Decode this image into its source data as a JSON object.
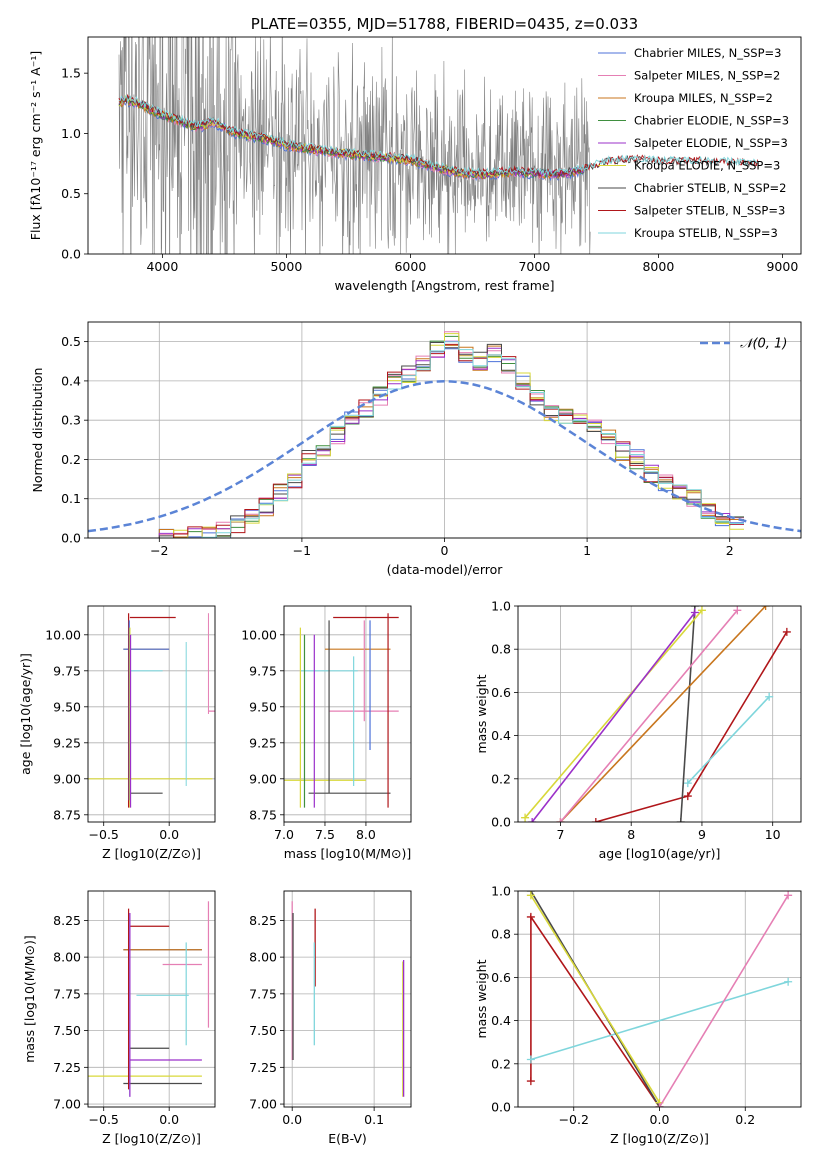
{
  "colors": {
    "Chabrier MILES": "#4c72d9",
    "Salpeter MILES": "#e57fb4",
    "Kroupa MILES": "#c8761e",
    "Chabrier ELODIE": "#3f8f3f",
    "Salpeter ELODIE": "#9b30c9",
    "Kroupa ELODIE": "#d8d83a",
    "Chabrier STELIB": "#4a4a4a",
    "Salpeter STELIB": "#b0161a",
    "Kroupa STELIB": "#7fd6dc",
    "data": "#808080",
    "normal": "#5b84d6",
    "orange": "#ee7733"
  },
  "chart_data": [
    {
      "id": "spectrum",
      "type": "line",
      "title": "PLATE=0355, MJD=51788, FIBERID=0435, z=0.033",
      "xlabel": "wavelength [Angstrom, rest frame]",
      "ylabel": "Flux [fλ10⁻¹⁷ erg cm⁻² s⁻¹ A⁻¹]",
      "xlim": [
        3400,
        9150
      ],
      "ylim": [
        0,
        1.8
      ],
      "xticks": [
        4000,
        5000,
        6000,
        7000,
        8000,
        9000
      ],
      "yticks": [
        0.0,
        0.5,
        1.0,
        1.5
      ],
      "legend": "top-right",
      "legend_entries": [
        "Chabrier MILES, N_SSP=3",
        "Salpeter MILES, N_SSP=2",
        "Kroupa MILES, N_SSP=2",
        "Chabrier ELODIE, N_SSP=3",
        "Salpeter ELODIE, N_SSP=3",
        "Kroupa ELODIE, N_SSP=3",
        "Chabrier STELIB, N_SSP=2",
        "Salpeter STELIB, N_SSP=3",
        "Kroupa STELIB, N_SSP=3"
      ],
      "model_continuum": {
        "x": [
          3650,
          3700,
          3800,
          3900,
          4000,
          4100,
          4200,
          4300,
          4400,
          4500,
          4600,
          4700,
          4800,
          4900,
          5000,
          5200,
          5400,
          5600,
          5800,
          6000,
          6200,
          6400,
          6600,
          6800,
          7000,
          7200,
          7400,
          7600,
          7800,
          8000,
          8200,
          8400,
          8600,
          8800
        ],
        "y": [
          1.25,
          1.28,
          1.25,
          1.2,
          1.15,
          1.12,
          1.08,
          1.05,
          1.1,
          1.05,
          1.0,
          0.98,
          0.96,
          0.94,
          0.9,
          0.87,
          0.84,
          0.82,
          0.8,
          0.78,
          0.72,
          0.67,
          0.66,
          0.68,
          0.67,
          0.66,
          0.7,
          0.76,
          0.78,
          0.76,
          0.76,
          0.76,
          0.75,
          0.74
        ]
      },
      "data_spectrum": {
        "note_range_x": [
          3650,
          7450
        ],
        "continuum_x": [
          3650,
          4000,
          4500,
          5000,
          5500,
          6000,
          6500,
          7000,
          7450
        ],
        "continuum_y": [
          1.1,
          1.0,
          0.95,
          0.85,
          0.8,
          0.75,
          0.7,
          0.68,
          0.68
        ]
      }
    },
    {
      "id": "residuals",
      "type": "bar",
      "xlabel": "(data-model)/error",
      "ylabel": "Normed distribution",
      "xlim": [
        -2.5,
        2.5
      ],
      "ylim": [
        0,
        0.55
      ],
      "xticks": [
        -2,
        -1,
        0,
        1,
        2
      ],
      "yticks": [
        0.0,
        0.1,
        0.2,
        0.3,
        0.4,
        0.5
      ],
      "legend_entries": [
        "𝒩(0, 1)"
      ],
      "bin_start": -2.0,
      "bin_width": 0.1,
      "hist": [
        0.0,
        0.0,
        0.005,
        0.01,
        0.02,
        0.035,
        0.05,
        0.08,
        0.12,
        0.15,
        0.2,
        0.22,
        0.26,
        0.3,
        0.33,
        0.36,
        0.4,
        0.42,
        0.44,
        0.48,
        0.5,
        0.47,
        0.45,
        0.47,
        0.44,
        0.4,
        0.36,
        0.32,
        0.31,
        0.3,
        0.28,
        0.26,
        0.22,
        0.2,
        0.16,
        0.14,
        0.12,
        0.1,
        0.07,
        0.05,
        0.04
      ]
    },
    {
      "id": "age_vs_Z",
      "type": "scatter",
      "xlabel": "Z [log10(Z/Z⊙)]",
      "ylabel": "age [log10(age/yr)]",
      "xlim": [
        -0.62,
        0.35
      ],
      "ylim": [
        8.7,
        10.2
      ],
      "xticks": [
        -0.5,
        0.0
      ],
      "yticks": [
        8.75,
        9.0,
        9.25,
        9.5,
        9.75,
        10.0
      ],
      "points": [
        {
          "model": "Salpeter STELIB",
          "x": -0.3,
          "y": 10.12,
          "xerr": 0.35
        },
        {
          "model": "Kroupa MILES",
          "x": -0.35,
          "y": 9.9,
          "xerr": 0.35
        },
        {
          "model": "Chabrier MILES",
          "x": -0.35,
          "y": 9.9,
          "xerr": 0.35
        },
        {
          "model": "Kroupa STELIB",
          "x": -0.3,
          "y": 9.75,
          "xerr": 0.25
        },
        {
          "model": "Salpeter MILES",
          "x": 0.3,
          "y": 9.47,
          "xerr": 0.15
        },
        {
          "model": "Kroupa ELODIE",
          "x": -0.62,
          "y": 9.0,
          "xerr": 0.95
        },
        {
          "model": "Chabrier STELIB",
          "x": -0.3,
          "y": 8.9,
          "xerr": 0.25
        }
      ]
    },
    {
      "id": "age_vs_mass",
      "type": "scatter",
      "xlabel": "mass [log10(M/M⊙)]",
      "xlim": [
        7.0,
        8.55
      ],
      "ylim": [
        8.7,
        10.2
      ],
      "xticks": [
        7.0,
        7.5,
        8.0
      ],
      "yticks": [
        8.75,
        9.0,
        9.25,
        9.5,
        9.75,
        10.0
      ]
    },
    {
      "id": "weight_vs_age",
      "type": "line",
      "xlabel": "age [log10(age/yr)]",
      "ylabel": "mass weight",
      "xlim": [
        6.4,
        10.4
      ],
      "ylim": [
        0,
        1.0
      ],
      "xticks": [
        6,
        7,
        8,
        9,
        10
      ],
      "yticks": [
        0.0,
        0.2,
        0.4,
        0.6,
        0.8,
        1.0
      ],
      "series": [
        {
          "model": "Salpeter STELIB",
          "x": [
            7.5,
            8.8,
            10.2
          ],
          "y": [
            0.0,
            0.12,
            0.88
          ]
        },
        {
          "model": "Kroupa STELIB",
          "x": [
            8.8,
            9.95
          ],
          "y": [
            0.18,
            0.58
          ]
        },
        {
          "model": "Chabrier STELIB",
          "x": [
            8.7,
            8.9
          ],
          "y": [
            0.0,
            1.0
          ]
        },
        {
          "model": "Kroupa MILES",
          "x": [
            7.0,
            9.9
          ],
          "y": [
            0.0,
            1.0
          ]
        },
        {
          "model": "Salpeter MILES",
          "x": [
            7.0,
            9.5
          ],
          "y": [
            0.0,
            0.98
          ]
        },
        {
          "model": "Kroupa ELODIE",
          "x": [
            6.5,
            9.0
          ],
          "y": [
            0.02,
            0.98
          ]
        },
        {
          "model": "Salpeter ELODIE",
          "x": [
            6.6,
            8.9
          ],
          "y": [
            0.0,
            0.97
          ]
        }
      ]
    },
    {
      "id": "mass_vs_Z",
      "type": "scatter",
      "xlabel": "Z [log10(Z/Z⊙)]",
      "ylabel": "mass [log10(M/M⊙)]",
      "xlim": [
        -0.62,
        0.35
      ],
      "ylim": [
        6.98,
        8.45
      ],
      "xticks": [
        -0.5,
        0.0
      ],
      "yticks": [
        7.0,
        7.25,
        7.5,
        7.75,
        8.0,
        8.25
      ]
    },
    {
      "id": "mass_vs_ebv",
      "type": "scatter",
      "xlabel": "E(B-V)",
      "xlim": [
        -0.01,
        0.145
      ],
      "ylim": [
        6.98,
        8.45
      ],
      "xticks": [
        0.0,
        0.1
      ],
      "yticks": [
        7.0,
        7.25,
        7.5,
        7.75,
        8.0,
        8.25
      ]
    },
    {
      "id": "weight_vs_Z",
      "type": "line",
      "xlabel": "Z [log10(Z/Z⊙)]",
      "ylabel": "mass weight",
      "xlim": [
        -0.33,
        0.33
      ],
      "ylim": [
        0,
        1.0
      ],
      "xticks": [
        -0.2,
        0.0,
        0.2
      ],
      "yticks": [
        0.0,
        0.2,
        0.4,
        0.6,
        0.8,
        1.0
      ],
      "series": [
        {
          "model": "Salpeter STELIB",
          "x": [
            -0.3,
            -0.3,
            0.0
          ],
          "y": [
            0.12,
            0.88,
            0.0
          ]
        },
        {
          "model": "Kroupa STELIB",
          "x": [
            -0.3,
            0.3
          ],
          "y": [
            0.22,
            0.58
          ]
        },
        {
          "model": "Chabrier STELIB",
          "x": [
            -0.3,
            0.0
          ],
          "y": [
            1.0,
            0.0
          ]
        },
        {
          "model": "Kroupa ELODIE",
          "x": [
            -0.3,
            0.0
          ],
          "y": [
            0.98,
            0.02
          ]
        },
        {
          "model": "Salpeter MILES",
          "x": [
            0.0,
            0.3
          ],
          "y": [
            0.0,
            0.98
          ]
        }
      ]
    }
  ]
}
